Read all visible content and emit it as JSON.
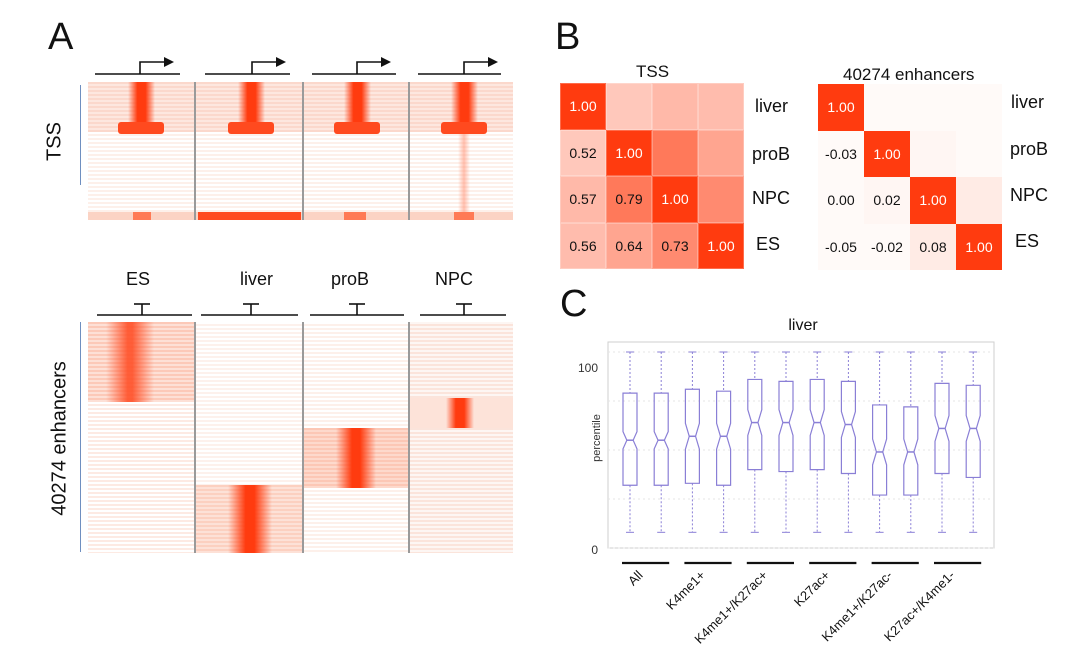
{
  "panels": {
    "a": "A",
    "b": "B",
    "c": "C"
  },
  "panel_a": {
    "tss_label": "TSS",
    "enh_label": "40274 enhancers",
    "cell_types": [
      "ES",
      "liver",
      "proB",
      "NPC"
    ]
  },
  "chart_data": [
    {
      "type": "heatmap",
      "title": "TSS",
      "labels": [
        "liver",
        "proB",
        "NPC",
        "ES"
      ],
      "matrix": [
        [
          1.0,
          null,
          null,
          null
        ],
        [
          0.52,
          1.0,
          null,
          null
        ],
        [
          0.57,
          0.79,
          1.0,
          null
        ],
        [
          0.56,
          0.64,
          0.73,
          1.0
        ]
      ],
      "display": [
        [
          "1.00",
          "",
          "",
          ""
        ],
        [
          "0.52",
          "1.00",
          "",
          ""
        ],
        [
          "0.57",
          "0.79",
          "1.00",
          ""
        ],
        [
          "0.56",
          "0.64",
          "0.73",
          "1.00"
        ]
      ]
    },
    {
      "type": "heatmap",
      "title": "40274 enhancers",
      "labels": [
        "liver",
        "proB",
        "NPC",
        "ES"
      ],
      "matrix": [
        [
          1.0,
          null,
          null,
          null
        ],
        [
          -0.03,
          1.0,
          null,
          null
        ],
        [
          0.0,
          0.02,
          1.0,
          null
        ],
        [
          -0.05,
          -0.02,
          0.08,
          1.0
        ]
      ],
      "display": [
        [
          "1.00",
          "",
          "",
          ""
        ],
        [
          "-0.03",
          "1.00",
          "",
          ""
        ],
        [
          "0.00",
          "0.02",
          "1.00",
          ""
        ],
        [
          "-0.05",
          "-0.02",
          "0.08",
          "1.00"
        ]
      ]
    },
    {
      "type": "box",
      "title": "liver",
      "ylabel": "percentile",
      "ylim": [
        0,
        100
      ],
      "yticks": [
        "0",
        "100"
      ],
      "groups": [
        "All",
        "K4me1+",
        "K4me1+/K27ac+",
        "K27ac+",
        "K4me1+/K27ac-",
        "K27ac+/K4me1-"
      ],
      "boxes": [
        {
          "group": "All",
          "whisker_low": 8,
          "q1": 32,
          "median": 55,
          "q3": 79,
          "whisker_high": 100,
          "notch": 2
        },
        {
          "group": "All",
          "whisker_low": 8,
          "q1": 32,
          "median": 55,
          "q3": 79,
          "whisker_high": 100,
          "notch": 2
        },
        {
          "group": "K4me1+",
          "whisker_low": 8,
          "q1": 33,
          "median": 57,
          "q3": 81,
          "whisker_high": 100,
          "notch": 3
        },
        {
          "group": "K4me1+",
          "whisker_low": 8,
          "q1": 32,
          "median": 57,
          "q3": 80,
          "whisker_high": 100,
          "notch": 3
        },
        {
          "group": "K4me1+/K27ac+",
          "whisker_low": 8,
          "q1": 40,
          "median": 64,
          "q3": 86,
          "whisker_high": 100,
          "notch": 3
        },
        {
          "group": "K4me1+/K27ac+",
          "whisker_low": 8,
          "q1": 39,
          "median": 64,
          "q3": 85,
          "whisker_high": 100,
          "notch": 3
        },
        {
          "group": "K27ac+",
          "whisker_low": 8,
          "q1": 40,
          "median": 64,
          "q3": 86,
          "whisker_high": 100,
          "notch": 3
        },
        {
          "group": "K27ac+",
          "whisker_low": 8,
          "q1": 38,
          "median": 63,
          "q3": 85,
          "whisker_high": 100,
          "notch": 3
        },
        {
          "group": "K4me1+/K27ac-",
          "whisker_low": 8,
          "q1": 27,
          "median": 49,
          "q3": 73,
          "whisker_high": 100,
          "notch": 3
        },
        {
          "group": "K4me1+/K27ac-",
          "whisker_low": 8,
          "q1": 27,
          "median": 49,
          "q3": 72,
          "whisker_high": 100,
          "notch": 3
        },
        {
          "group": "K27ac+/K4me1-",
          "whisker_low": 8,
          "q1": 38,
          "median": 61,
          "q3": 84,
          "whisker_high": 100,
          "notch": 3
        },
        {
          "group": "K27ac+/K4me1-",
          "whisker_low": 8,
          "q1": 36,
          "median": 61,
          "q3": 83,
          "whisker_high": 100,
          "notch": 3
        }
      ]
    }
  ],
  "colors": {
    "accent": "#ff3b0f",
    "box": "#8a7fd6",
    "grid": "#e6e6e6"
  }
}
